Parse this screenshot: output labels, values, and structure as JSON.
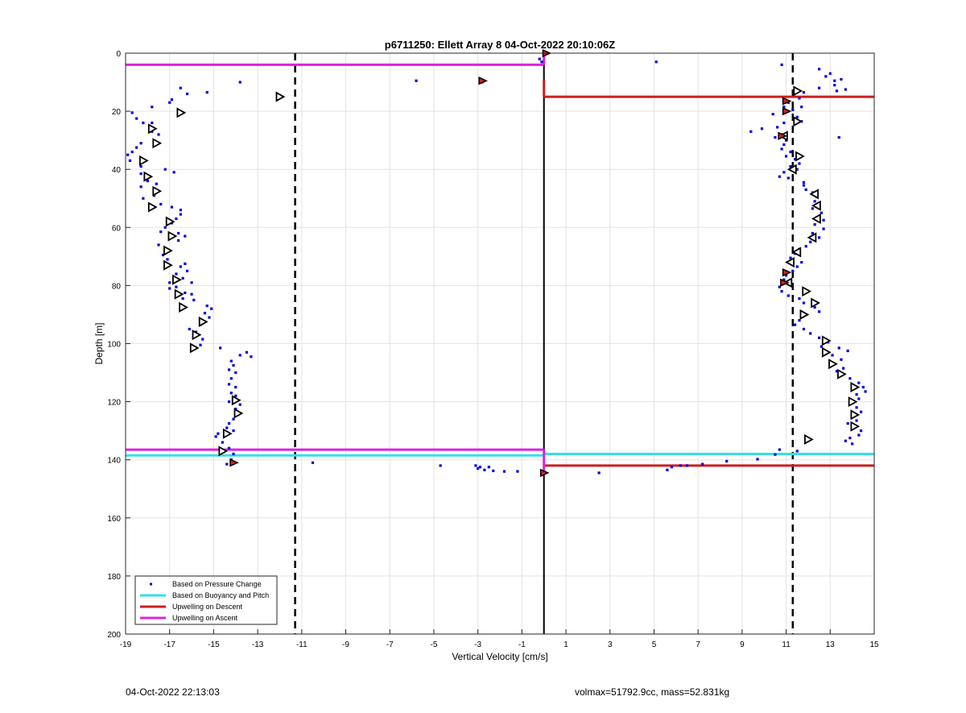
{
  "footer": {
    "timestamp": "04-Oct-2022 22:13:03",
    "info": "volmax=51792.9cc, mass=52.831kg"
  },
  "chart_data": {
    "type": "scatter",
    "title": "p6711250: Ellett Array 8 04-Oct-2022 20:10:06Z",
    "xlabel": "Vertical Velocity [cm/s]",
    "ylabel": "Depth [m]",
    "xlim": [
      -19,
      15
    ],
    "ylim": [
      0,
      200
    ],
    "y_reversed": true,
    "grid": true,
    "legend_position": "bottom-left",
    "xticks": [
      "-19",
      "-17",
      "-15",
      "-13",
      "-11",
      "-9",
      "-7",
      "-5",
      "-3",
      "-1",
      "1",
      "3",
      "5",
      "7",
      "9",
      "11",
      "13",
      "15"
    ],
    "yticks": [
      "0",
      "20",
      "40",
      "60",
      "80",
      "100",
      "120",
      "140",
      "160",
      "180",
      "200"
    ],
    "colors": {
      "pressure": "#0000dd",
      "buoyancy": "#33e0e8",
      "descent": "#cc1f1f",
      "ascent": "#dd22dd",
      "marker_fill_red": "#d41f1f"
    },
    "legend": [
      {
        "label": "Based on Pressure Change",
        "color": "#0000dd",
        "style": "dot"
      },
      {
        "label": "Based on Buoyancy and Pitch",
        "color": "#33e0e8",
        "style": "line"
      },
      {
        "label": "Upwelling on Descent",
        "color": "#cc1f1f",
        "style": "line"
      },
      {
        "label": "Upwelling on Ascent",
        "color": "#dd22dd",
        "style": "line"
      }
    ],
    "reference_lines": [
      {
        "x": -11.3,
        "style": "dashed"
      },
      {
        "x": 11.3,
        "style": "dashed"
      },
      {
        "x": 0,
        "style": "solid"
      }
    ],
    "upwelling_segments": [
      {
        "series": "ascent",
        "x1": -19,
        "x2": 0,
        "y": 4,
        "thick": true
      },
      {
        "series": "ascent",
        "x1": -19,
        "x2": 0,
        "y": 136.5,
        "thick": true
      },
      {
        "series": "buoyancy",
        "x1": -19,
        "x2": 0,
        "y": 138.5,
        "thick": true
      },
      {
        "series": "buoyancy",
        "x1": 0,
        "x2": 15,
        "y": 138,
        "thick": true
      },
      {
        "series": "descent",
        "x1": 0,
        "x2": 15,
        "y": 15,
        "thick": true
      },
      {
        "series": "descent",
        "x1": 0,
        "x2": 15,
        "y": 142,
        "thick": true
      },
      {
        "series": "descent",
        "x1": 0,
        "x2": 0,
        "y1": 9,
        "y2": 15,
        "thick": false
      },
      {
        "series": "ascent",
        "x1": 0,
        "x2": 0,
        "y1": 0,
        "y2": 4,
        "thick": false
      },
      {
        "series": "ascent",
        "x1": 0,
        "x2": 0,
        "y1": 136.5,
        "y2": 144,
        "thick": false
      }
    ],
    "series": [
      {
        "name": "Based on Pressure Change",
        "marker": "dot",
        "points": [
          [
            -16.5,
            12
          ],
          [
            -16.2,
            14
          ],
          [
            -15.3,
            13.5
          ],
          [
            -13.8,
            10
          ],
          [
            -17,
            17
          ],
          [
            -16.9,
            16
          ],
          [
            -17.8,
            18.5
          ],
          [
            -18.7,
            20.5
          ],
          [
            -18.5,
            22.5
          ],
          [
            -18.2,
            24
          ],
          [
            -17.8,
            24
          ],
          [
            -17.5,
            28
          ],
          [
            -17.8,
            27
          ],
          [
            -18.3,
            31
          ],
          [
            -18.5,
            32.5
          ],
          [
            -18.7,
            34
          ],
          [
            -18.9,
            35
          ],
          [
            -18.8,
            37
          ],
          [
            -18.3,
            39
          ],
          [
            -17.2,
            40
          ],
          [
            -16.8,
            41
          ],
          [
            -18.3,
            41.5
          ],
          [
            -18.0,
            44
          ],
          [
            -17.6,
            45
          ],
          [
            -18.3,
            46
          ],
          [
            -17.7,
            49
          ],
          [
            -18.2,
            50
          ],
          [
            -17.4,
            52
          ],
          [
            -16.9,
            53
          ],
          [
            -16.5,
            54
          ],
          [
            -16.5,
            55.5
          ],
          [
            -16.7,
            57
          ],
          [
            -16.9,
            58.5
          ],
          [
            -17.2,
            60
          ],
          [
            -17.4,
            61.5
          ],
          [
            -16.6,
            62
          ],
          [
            -16.3,
            63
          ],
          [
            -16.6,
            64.5
          ],
          [
            -17.5,
            66
          ],
          [
            -17.2,
            67.5
          ],
          [
            -17.3,
            69.5
          ],
          [
            -17.1,
            71
          ],
          [
            -16.3,
            72.5
          ],
          [
            -16.5,
            73.5
          ],
          [
            -16.2,
            75
          ],
          [
            -16.7,
            76
          ],
          [
            -16.4,
            77.5
          ],
          [
            -16.0,
            79
          ],
          [
            -17.0,
            79
          ],
          [
            -16.7,
            80.5
          ],
          [
            -17.0,
            81
          ],
          [
            -16.3,
            82.5
          ],
          [
            -16.0,
            83
          ],
          [
            -16.4,
            84.5
          ],
          [
            -15.9,
            85
          ],
          [
            -15.3,
            87
          ],
          [
            -15.1,
            88
          ],
          [
            -15.4,
            89.5
          ],
          [
            -15.2,
            91
          ],
          [
            -15.6,
            93.5
          ],
          [
            -16.1,
            95
          ],
          [
            -15.8,
            96
          ],
          [
            -15.5,
            98.5
          ],
          [
            -15.6,
            100.5
          ],
          [
            -14.7,
            101.5
          ],
          [
            -13.5,
            103
          ],
          [
            -13.8,
            104
          ],
          [
            -13.3,
            104.5
          ],
          [
            -14.2,
            106
          ],
          [
            -14.1,
            107.5
          ],
          [
            -14.3,
            109
          ],
          [
            -14.0,
            110
          ],
          [
            -14.2,
            112
          ],
          [
            -14.3,
            114
          ],
          [
            -14.0,
            115
          ],
          [
            -14.2,
            117
          ],
          [
            -14.0,
            118
          ],
          [
            -14.3,
            120
          ],
          [
            -13.8,
            121
          ],
          [
            -14.0,
            122.5
          ],
          [
            -13.9,
            124.5
          ],
          [
            -14.1,
            126
          ],
          [
            -14.3,
            127.5
          ],
          [
            -14.4,
            129
          ],
          [
            -14.1,
            130
          ],
          [
            -14.8,
            131
          ],
          [
            -14.9,
            132
          ],
          [
            -14.6,
            134
          ],
          [
            -14.3,
            136
          ],
          [
            -14.1,
            138
          ],
          [
            -14.2,
            140
          ],
          [
            -14.4,
            141.5
          ],
          [
            -10.5,
            141
          ],
          [
            -4.7,
            142
          ],
          [
            -3.1,
            142
          ],
          [
            -3.0,
            143
          ],
          [
            -2.7,
            143.5
          ],
          [
            -2.5,
            142.5
          ],
          [
            -2.3,
            143.8
          ],
          [
            -1.8,
            144
          ],
          [
            -1.2,
            144
          ],
          [
            -2.9,
            142.5
          ],
          [
            -5.8,
            9.5
          ],
          [
            -2.8,
            10
          ],
          [
            2.5,
            144.5
          ],
          [
            5.6,
            143.5
          ],
          [
            5.8,
            142.5
          ],
          [
            6.2,
            142
          ],
          [
            6.5,
            142
          ],
          [
            7.2,
            141.5
          ],
          [
            8.3,
            140.5
          ],
          [
            9.7,
            139.8
          ],
          [
            10.5,
            138.2
          ],
          [
            10.7,
            136.5
          ],
          [
            11.5,
            137
          ],
          [
            5.1,
            3
          ],
          [
            10.8,
            4
          ],
          [
            -0.1,
            3
          ],
          [
            -0.2,
            2
          ],
          [
            12.5,
            5.5
          ],
          [
            13.0,
            7
          ],
          [
            12.8,
            8
          ],
          [
            13.2,
            9.5
          ],
          [
            13.5,
            9
          ],
          [
            13.2,
            11
          ],
          [
            13.7,
            12.5
          ],
          [
            13.3,
            13
          ],
          [
            12.5,
            12
          ],
          [
            11.8,
            13.5
          ],
          [
            11.6,
            15.5
          ],
          [
            11.1,
            17
          ],
          [
            10.9,
            18.5
          ],
          [
            11.3,
            19.5
          ],
          [
            11.7,
            18.5
          ],
          [
            10.4,
            21
          ],
          [
            11.5,
            22
          ],
          [
            11.7,
            23.5
          ],
          [
            10.9,
            24
          ],
          [
            10.6,
            25.5
          ],
          [
            9.9,
            26
          ],
          [
            9.4,
            27
          ],
          [
            10.8,
            28
          ],
          [
            10.5,
            29
          ],
          [
            13.4,
            29
          ],
          [
            11.0,
            30
          ],
          [
            10.9,
            31.5
          ],
          [
            10.8,
            33
          ],
          [
            11.2,
            34
          ],
          [
            11.0,
            35.5
          ],
          [
            11.4,
            36.5
          ],
          [
            11.6,
            38
          ],
          [
            11.2,
            39
          ],
          [
            11.5,
            40
          ],
          [
            10.9,
            41
          ],
          [
            10.7,
            42.5
          ],
          [
            11.1,
            43
          ],
          [
            11.8,
            44.5
          ],
          [
            11.8,
            45.5
          ],
          [
            11.9,
            47
          ],
          [
            12.2,
            48
          ],
          [
            12.4,
            49.5
          ],
          [
            12.3,
            51
          ],
          [
            12.5,
            52
          ],
          [
            12.2,
            53.5
          ],
          [
            12.6,
            55
          ],
          [
            12.4,
            56.5
          ],
          [
            12.7,
            57.5
          ],
          [
            12.3,
            59
          ],
          [
            12.7,
            60.5
          ],
          [
            12.2,
            62
          ],
          [
            12.5,
            63.5
          ],
          [
            12.1,
            65
          ],
          [
            11.9,
            66.5
          ],
          [
            11.6,
            67.5
          ],
          [
            11.4,
            69
          ],
          [
            11.2,
            70.5
          ],
          [
            11.7,
            72
          ],
          [
            11.5,
            73.5
          ],
          [
            11.3,
            75
          ],
          [
            11.0,
            76.5
          ],
          [
            10.9,
            78
          ],
          [
            11.1,
            79.5
          ],
          [
            10.7,
            80.5
          ],
          [
            10.8,
            82
          ],
          [
            11.1,
            83.5
          ],
          [
            11.6,
            84.5
          ],
          [
            11.8,
            86
          ],
          [
            12.3,
            87.5
          ],
          [
            12.5,
            89
          ],
          [
            11.8,
            90.5
          ],
          [
            11.6,
            92
          ],
          [
            11.4,
            93.5
          ],
          [
            11.8,
            95
          ],
          [
            12.1,
            96.5
          ],
          [
            12.5,
            98
          ],
          [
            12.9,
            99.5
          ],
          [
            12.6,
            101
          ],
          [
            13.4,
            101.5
          ],
          [
            13.8,
            102.5
          ],
          [
            13.1,
            104
          ],
          [
            13.5,
            105.5
          ],
          [
            13.2,
            107
          ],
          [
            13.6,
            108.5
          ],
          [
            13.3,
            109.5
          ],
          [
            13.4,
            111
          ],
          [
            13.9,
            112
          ],
          [
            14.3,
            113.5
          ],
          [
            14.5,
            115
          ],
          [
            14.6,
            116.5
          ],
          [
            14.2,
            117.5
          ],
          [
            14.3,
            119
          ],
          [
            14.0,
            120.5
          ],
          [
            14.2,
            122
          ],
          [
            14.4,
            123.5
          ],
          [
            14.0,
            125
          ],
          [
            14.2,
            126.5
          ],
          [
            13.8,
            127.5
          ],
          [
            14.1,
            128.5
          ],
          [
            14.4,
            130
          ],
          [
            14.3,
            131.5
          ],
          [
            13.9,
            132.5
          ],
          [
            13.7,
            133.5
          ],
          [
            14.0,
            134.5
          ]
        ]
      },
      {
        "name": "ascent markers",
        "marker": "triangle-right",
        "points": [
          [
            -12.0,
            15
          ],
          [
            -16.5,
            20.5
          ],
          [
            -17.8,
            26
          ],
          [
            -17.6,
            31
          ],
          [
            -18.2,
            37
          ],
          [
            -18.0,
            42.5
          ],
          [
            -17.6,
            47.5
          ],
          [
            -17.8,
            53
          ],
          [
            -17.0,
            58
          ],
          [
            -16.9,
            63
          ],
          [
            -17.1,
            68
          ],
          [
            -17.1,
            73
          ],
          [
            -16.7,
            78
          ],
          [
            -16.6,
            83
          ],
          [
            -16.4,
            87.5
          ],
          [
            -15.5,
            92.5
          ],
          [
            -15.8,
            97
          ],
          [
            -15.9,
            101.5
          ],
          [
            -14.0,
            119.5
          ],
          [
            -13.9,
            124
          ],
          [
            -14.4,
            131
          ],
          [
            -14.6,
            137
          ],
          [
            12.0,
            133
          ],
          [
            11.5,
            13
          ],
          [
            11.5,
            23.5
          ],
          [
            11.6,
            35.5
          ],
          [
            11.9,
            82
          ],
          [
            12.3,
            86
          ],
          [
            11.8,
            90
          ],
          [
            12.8,
            99
          ],
          [
            12.8,
            103
          ],
          [
            13.1,
            107
          ],
          [
            13.5,
            110.5
          ],
          [
            14.1,
            115
          ],
          [
            14.0,
            120
          ],
          [
            14.1,
            124.5
          ],
          [
            14.1,
            128.5
          ]
        ]
      },
      {
        "name": "descent markers",
        "marker": "triangle-left",
        "points": [
          [
            11.3,
            40
          ],
          [
            12.3,
            48.5
          ],
          [
            12.4,
            52.5
          ],
          [
            12.4,
            57
          ],
          [
            12.2,
            63.5
          ],
          [
            11.5,
            68.5
          ],
          [
            11.2,
            72
          ],
          [
            11.1,
            79
          ],
          [
            10.9,
            28.5
          ]
        ]
      },
      {
        "name": "red fill markers",
        "marker": "red-star",
        "points": [
          [
            0.1,
            0
          ],
          [
            -2.8,
            9.5
          ],
          [
            11.0,
            16.5
          ],
          [
            11.0,
            20
          ],
          [
            10.8,
            28.5
          ],
          [
            11.0,
            75.5
          ],
          [
            10.9,
            79
          ],
          [
            -14.1,
            141
          ],
          [
            0,
            144.5
          ]
        ]
      }
    ]
  }
}
